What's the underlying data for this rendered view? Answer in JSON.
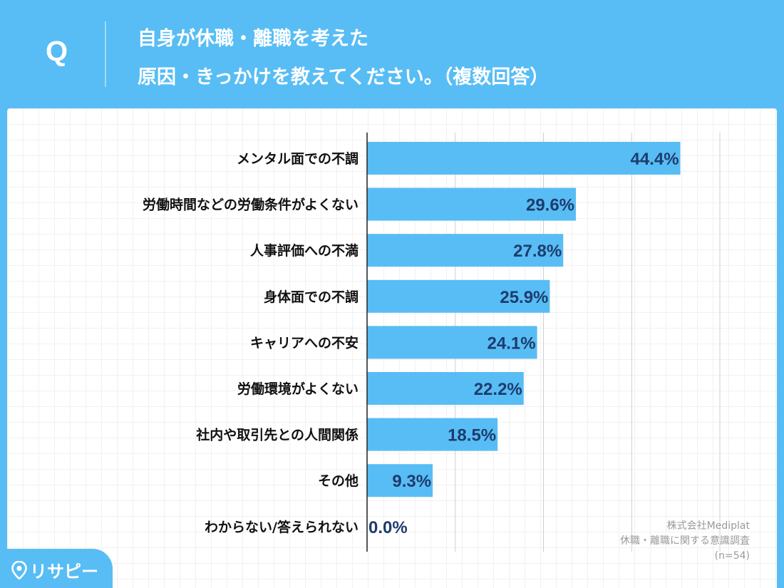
{
  "header": {
    "q_mark": "Q",
    "question_line1": "自身が休職・離職を考えた",
    "question_line2": "原因・きっかけを教えてください。（複数回答）"
  },
  "chart_data": {
    "type": "bar",
    "orientation": "horizontal",
    "title": "自身が休職・離職を考えた原因・きっかけを教えてください。（複数回答）",
    "categories": [
      "メンタル面での不調",
      "労働時間などの労働条件がよくない",
      "人事評価への不満",
      "身体面での不調",
      "キャリアへの不安",
      "労働環境がよくない",
      "社内や取引先との人間関係",
      "その他",
      "わからない/答えられない"
    ],
    "values": [
      44.4,
      29.6,
      27.8,
      25.9,
      24.1,
      22.2,
      18.5,
      9.3,
      0.0
    ],
    "value_labels": [
      "44.4%",
      "29.6%",
      "27.8%",
      "25.9%",
      "24.1%",
      "22.2%",
      "18.5%",
      "9.3%",
      "0.0%"
    ],
    "xlim": [
      0,
      50
    ],
    "grid": true,
    "xlabel": "",
    "ylabel": ""
  },
  "source": {
    "line1": "株式会社Mediplat",
    "line2": "休職・離職に関する意識調査",
    "line3": "(n=54)"
  },
  "logo": {
    "text": "リサピー"
  },
  "colors": {
    "accent": "#58bdf4",
    "bar": "#58bdf4",
    "value_text": "#1d3c6e",
    "category_text": "#111111"
  }
}
